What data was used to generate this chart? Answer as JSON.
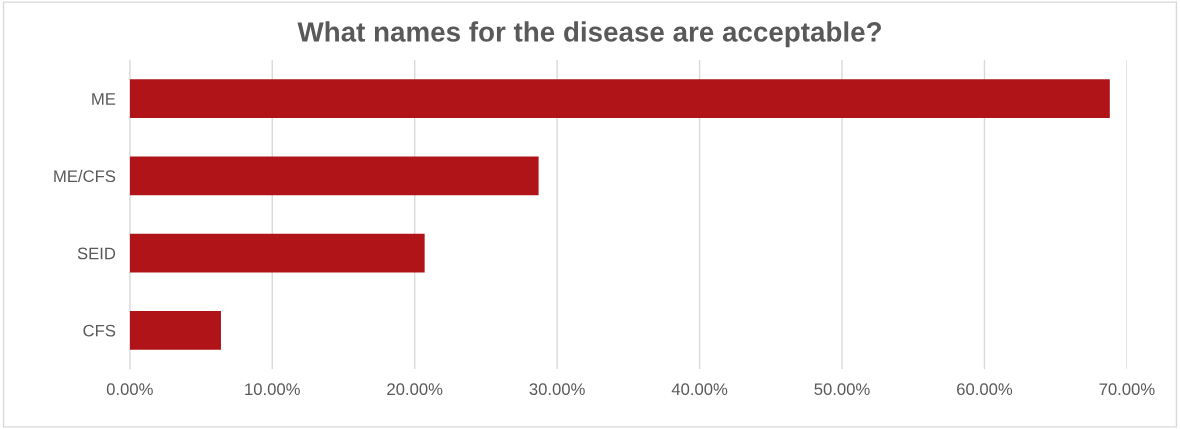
{
  "chart_data": {
    "type": "bar",
    "orientation": "horizontal",
    "title": "What names for the disease are acceptable?",
    "categories": [
      "ME",
      "ME/CFS",
      "SEID",
      "CFS"
    ],
    "values": [
      68.8,
      28.7,
      20.7,
      6.4
    ],
    "color": "#b01418",
    "xlim": [
      0,
      70
    ],
    "xticks": [
      {
        "value": 0,
        "label": "0.00%"
      },
      {
        "value": 10,
        "label": "10.00%"
      },
      {
        "value": 20,
        "label": "20.00%"
      },
      {
        "value": 30,
        "label": "30.00%"
      },
      {
        "value": 40,
        "label": "40.00%"
      },
      {
        "value": 50,
        "label": "50.00%"
      },
      {
        "value": 60,
        "label": "60.00%"
      },
      {
        "value": 70,
        "label": "70.00%"
      }
    ],
    "grid": "x"
  }
}
